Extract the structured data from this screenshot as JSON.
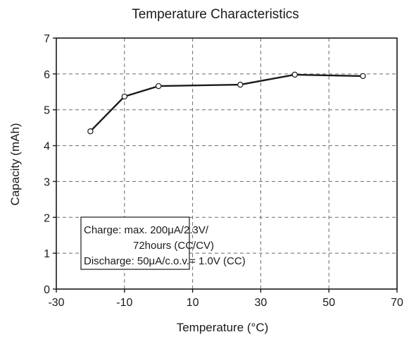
{
  "chart_data": {
    "type": "line",
    "title": "Temperature  Characteristics",
    "xlabel": "Temperature (°C)",
    "ylabel": "Capacity (mAh)",
    "xlim": [
      -30,
      70
    ],
    "ylim": [
      0,
      7
    ],
    "xticks": [
      -30,
      -10,
      10,
      30,
      50,
      70
    ],
    "yticks": [
      0,
      1,
      2,
      3,
      4,
      5,
      6,
      7
    ],
    "grid": true,
    "legend": "none",
    "series": [
      {
        "x": [
          -20,
          -10,
          0,
          24,
          40,
          60
        ],
        "y": [
          4.4,
          5.37,
          5.66,
          5.7,
          5.98,
          5.94
        ]
      }
    ],
    "annotation": {
      "line1": "Charge: max. 200μA/2.3V/",
      "line2": "72hours (CC/CV)",
      "line3": "Discharge: 50μA/c.o.v.= 1.0V (CC)"
    }
  }
}
